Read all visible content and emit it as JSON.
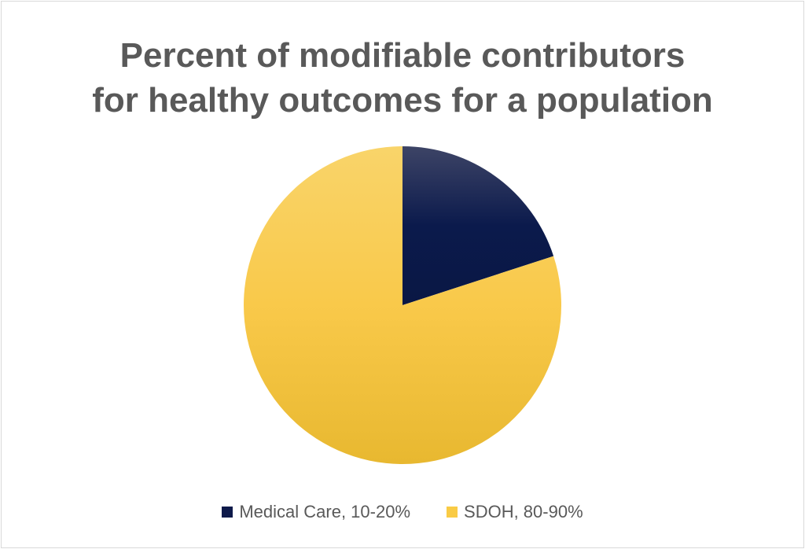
{
  "chart_data": {
    "type": "pie",
    "title": "Percent of modifiable contributors for healthy outcomes for a population",
    "title_lines": [
      "Percent of modifiable contributors",
      "for healthy outcomes for a population"
    ],
    "slices": [
      {
        "label": "Medical Care, 10-20%",
        "value": 20,
        "color": "#0e1a4a"
      },
      {
        "label": "SDOH, 80-90%",
        "value": 80,
        "color": "#f8c943"
      }
    ],
    "legend_position": "bottom"
  }
}
